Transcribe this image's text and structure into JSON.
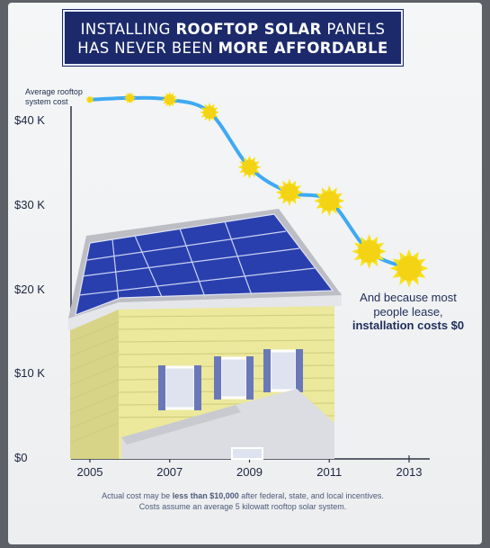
{
  "header": {
    "line1_a": "INSTALLING ",
    "line1_b": "ROOFTOP SOLAR",
    "line1_c": " PANELS",
    "line2_a": "HAS NEVER BEEN ",
    "line2_b": "MORE AFFORDABLE"
  },
  "annotation": {
    "line1": "And because most",
    "line2": "people lease,",
    "line3": "installation costs $0"
  },
  "footnote": {
    "line1_a": "Actual cost may be ",
    "line1_b": "less than $10,000",
    "line1_c": " after federal, state, and local incentives.",
    "line2": "Costs assume an average 5 kilowatt rooftop solar system."
  },
  "colors": {
    "banner": "#1c2a6b",
    "line": "#3fa9f2",
    "sun": "#f7e21c",
    "panel": "#2a3fae",
    "house_siding": "#ece89c",
    "roof": "#bdbec4"
  },
  "illustration": "house-with-rooftop-solar-panels",
  "chart_data": {
    "type": "line",
    "title": "INSTALLING ROOFTOP SOLAR PANELS HAS NEVER BEEN MORE AFFORDABLE",
    "xlabel": "",
    "ylabel": "",
    "x": [
      2005,
      2006,
      2007,
      2008,
      2009,
      2010,
      2011,
      2012,
      2013
    ],
    "series": [
      {
        "name": "Average rooftop system cost",
        "values": [
          42500,
          42700,
          42500,
          41000,
          34500,
          31500,
          30500,
          24500,
          22500
        ]
      }
    ],
    "xticks": [
      "2005",
      "2007",
      "2009",
      "2011",
      "2013"
    ],
    "yticks": [
      "$0",
      "$10 K",
      "$20 K",
      "$30 K",
      "$40 K"
    ],
    "ytick_values": [
      0,
      10000,
      20000,
      30000,
      40000
    ],
    "ylim": [
      0,
      45000
    ],
    "xlim": [
      2005,
      2013.5
    ],
    "grid": false,
    "legend": "none"
  }
}
